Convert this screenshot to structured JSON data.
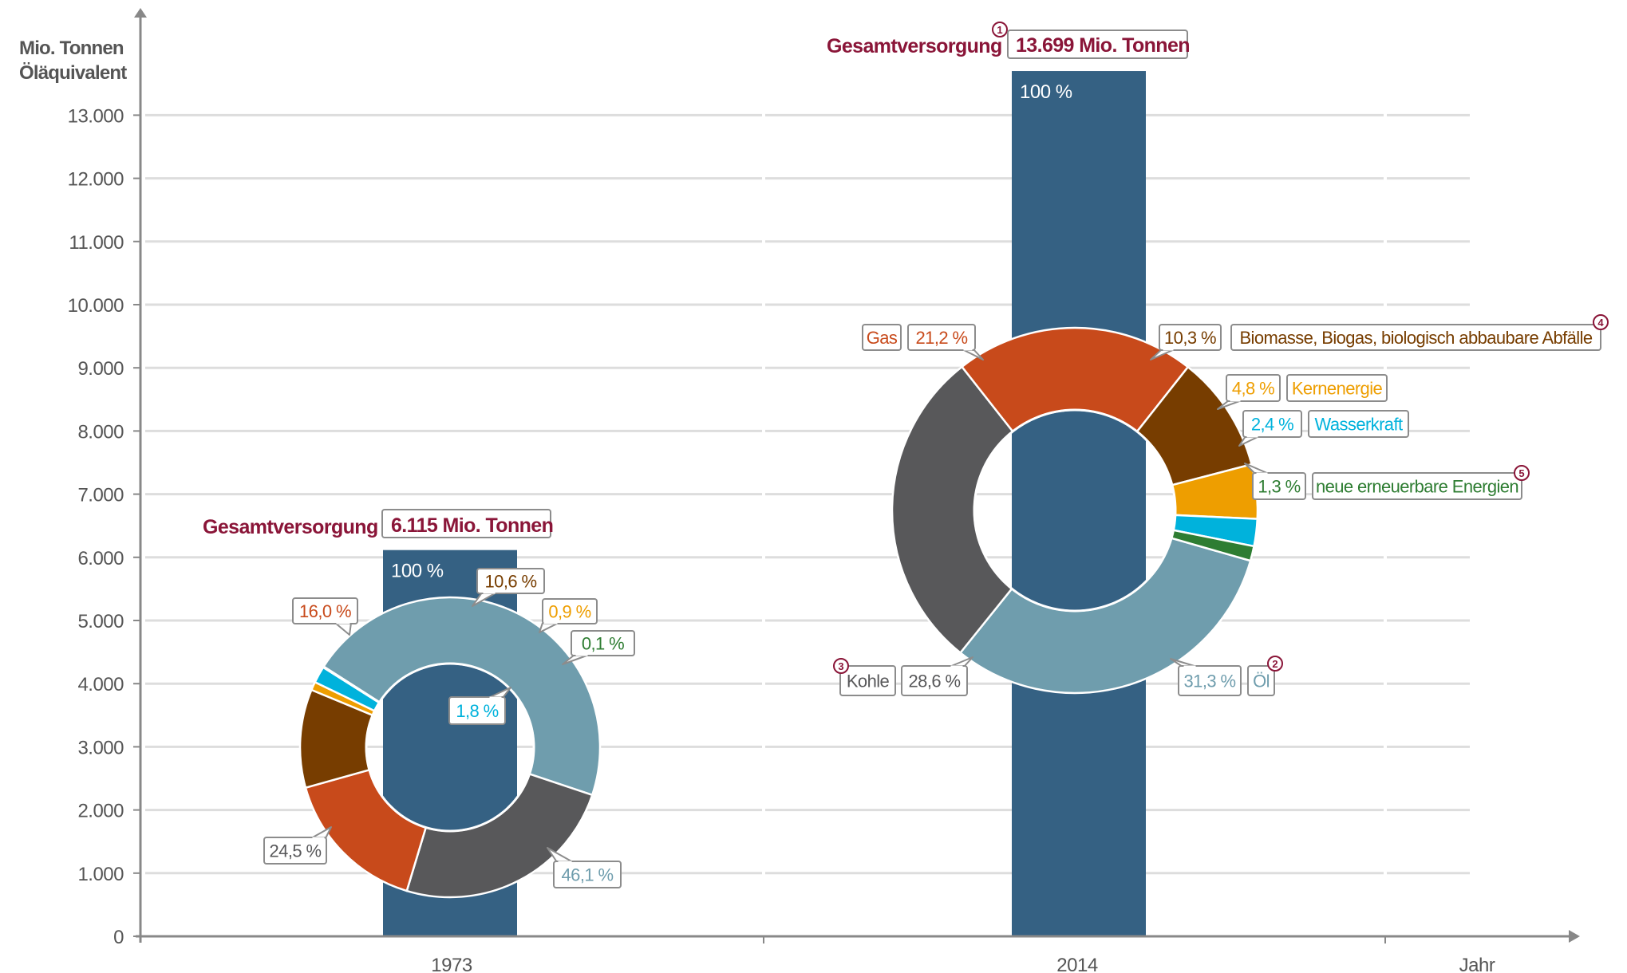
{
  "chart_data": {
    "type": "bar",
    "title": "",
    "ylabel": "Mio. Tonnen Öläquivalent",
    "ylabel_lines": [
      "Mio. Tonnen",
      "Öläquivalent"
    ],
    "xlabel": "Jahr",
    "ylim": [
      0,
      14000
    ],
    "yticks": [
      0,
      1000,
      2000,
      3000,
      4000,
      5000,
      6000,
      7000,
      8000,
      9000,
      10000,
      11000,
      12000,
      13000
    ],
    "ytick_labels": [
      "0",
      "1.000",
      "2.000",
      "3.000",
      "4.000",
      "5.000",
      "6.000",
      "7.000",
      "8.000",
      "9.000",
      "10.000",
      "11.000",
      "12.000",
      "13.000"
    ],
    "grid": true,
    "categories": [
      "1973",
      "2014"
    ],
    "values": [
      6115,
      13699
    ],
    "bar_labels": [
      "100 %",
      "100 %"
    ],
    "total_label": "Gesamtversorgung",
    "total_values": [
      "6.115 Mio. Tonnen",
      "13.699 Mio. Tonnen"
    ],
    "total_note": [
      "",
      "1"
    ],
    "colors": {
      "bar": "#356183",
      "title": "#8a1538",
      "axis": "#888888",
      "grid": "#dddddd"
    },
    "donut_series": [
      {
        "key": "oel",
        "name": "Öl",
        "color": "#6f9dad",
        "note": "2"
      },
      {
        "key": "kohle",
        "name": "Kohle",
        "color": "#58585a",
        "note": "3"
      },
      {
        "key": "gas",
        "name": "Gas",
        "color": "#c84a1b",
        "note": ""
      },
      {
        "key": "biomasse",
        "name": "Biomasse, Biogas, biologisch abbaubare Abfälle",
        "color": "#773d00",
        "note": "4"
      },
      {
        "key": "kern",
        "name": "Kernenergie",
        "color": "#ee9e00",
        "note": ""
      },
      {
        "key": "wasser",
        "name": "Wasserkraft",
        "color": "#00b2dc",
        "note": ""
      },
      {
        "key": "neue",
        "name": "neue erneuerbare Energien",
        "color": "#2e7d32",
        "note": "5"
      }
    ],
    "donuts": [
      {
        "year": "1973",
        "shares": {
          "oel": 46.1,
          "kohle": 24.5,
          "gas": 16.0,
          "biomasse": 10.6,
          "kern": 0.9,
          "wasser": 1.8,
          "neue": 0.1
        },
        "labels": {
          "oel": "46,1 %",
          "kohle": "24,5 %",
          "gas": "16,0 %",
          "biomasse": "10,6 %",
          "kern": "0,9 %",
          "wasser": "1,8 %",
          "neue": "0,1 %"
        }
      },
      {
        "year": "2014",
        "shares": {
          "oel": 31.3,
          "kohle": 28.6,
          "gas": 21.2,
          "biomasse": 10.3,
          "kern": 4.8,
          "wasser": 2.4,
          "neue": 1.3
        },
        "labels": {
          "oel": "31,3 %",
          "kohle": "28,6 %",
          "gas": "21,2 %",
          "biomasse": "10,3 %",
          "kern": "4,8 %",
          "wasser": "2,4 %",
          "neue": "1,3 %"
        }
      }
    ]
  }
}
